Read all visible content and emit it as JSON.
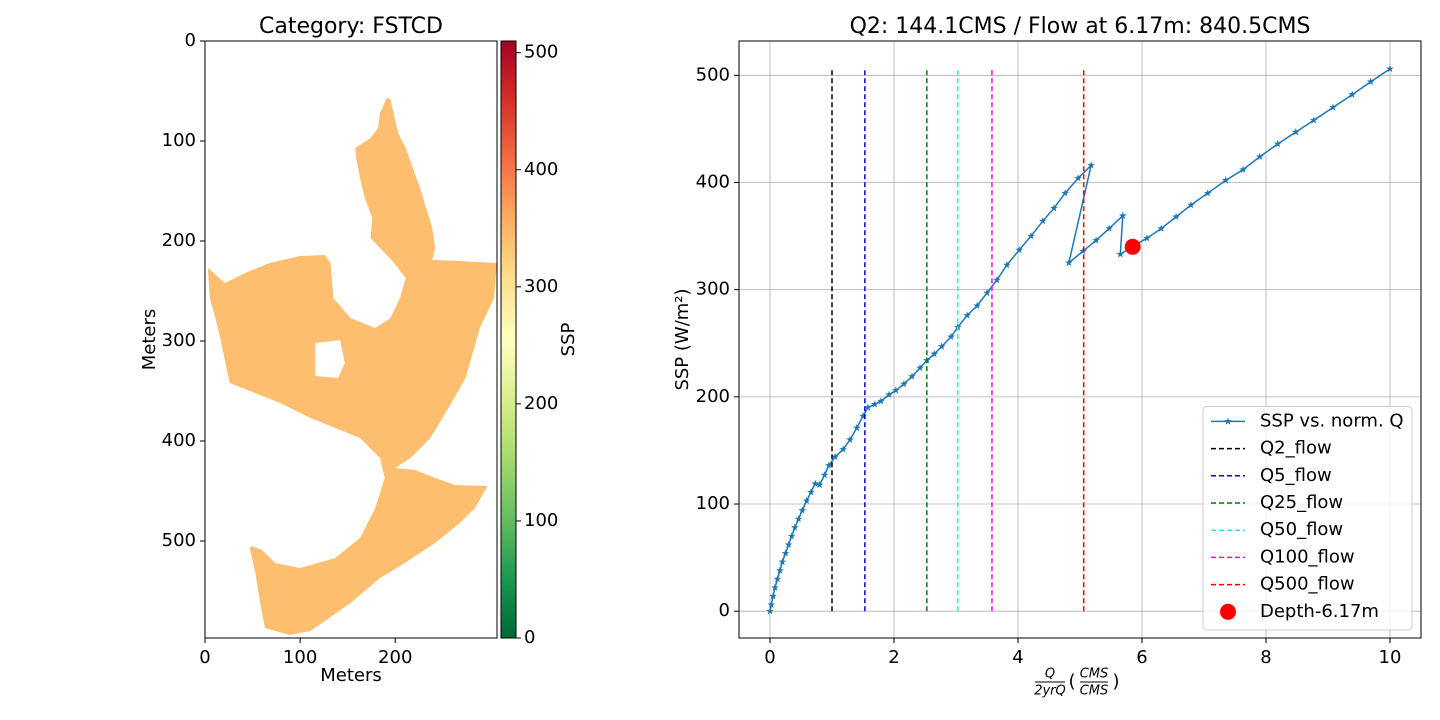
{
  "chart_data": [
    {
      "type": "image",
      "title": "Category: FSTCD",
      "xlabel": "Meters",
      "ylabel": "Meters",
      "xlim": [
        0,
        307
      ],
      "ylim": [
        597,
        0
      ],
      "xticks": [
        0,
        100,
        200
      ],
      "yticks": [
        0,
        100,
        200,
        300,
        400,
        500
      ],
      "region": {
        "value": 340,
        "x": [
          191,
          195,
          203,
          211,
          226,
          239,
          242,
          239,
          268,
          287,
          307,
          304,
          289,
          274,
          256,
          237,
          216,
          200,
          221,
          242,
          263,
          297,
          284,
          268,
          242,
          205,
          184,
          153,
          111,
          89,
          63,
          58,
          53,
          47,
          49,
          60,
          74,
          100,
          137,
          163,
          179,
          189,
          184,
          163,
          111,
          79,
          26,
          16,
          11,
          5,
          3,
          21,
          42,
          68,
          100,
          126,
          132,
          135,
          153,
          179,
          195,
          205,
          211,
          197,
          184,
          174,
          176,
          168,
          163,
          159,
          158,
          174,
          182,
          184
        ],
        "y": [
          57,
          58,
          92,
          107,
          147,
          187,
          207,
          219,
          220,
          221,
          222,
          257,
          287,
          337,
          367,
          397,
          417,
          427,
          429,
          437,
          444,
          445,
          467,
          482,
          502,
          525,
          537,
          562,
          590,
          594,
          587,
          562,
          532,
          507,
          505,
          509,
          522,
          527,
          517,
          497,
          467,
          437,
          417,
          397,
          377,
          362,
          342,
          297,
          277,
          257,
          227,
          242,
          232,
          222,
          215,
          214,
          222,
          257,
          277,
          287,
          277,
          257,
          237,
          220,
          207,
          197,
          177,
          157,
          137,
          117,
          107,
          97,
          87,
          72
        ],
        "hole_x": [
          116,
          142,
          147,
          140,
          116
        ],
        "hole_y": [
          302,
          299,
          322,
          337,
          335
        ]
      },
      "colorbar": {
        "label": "SSP",
        "colormap": "RdYlGn_r",
        "lim": [
          0,
          510
        ],
        "ticks": [
          0,
          100,
          200,
          300,
          400,
          500
        ]
      }
    },
    {
      "type": "line",
      "title": "Q2: 144.1CMS / Flow at 6.17m: 840.5CMS",
      "xlabel": {
        "numerator": "Q",
        "denominator": "2yrQ",
        "unit_numerator": "CMS",
        "unit_denominator": "CMS",
        "brackets": [
          "(",
          ")"
        ]
      },
      "ylabel": "SSP (W/m²)",
      "xlim": [
        -0.5,
        10.5
      ],
      "ylim": [
        -25,
        532
      ],
      "xticks": [
        0,
        2,
        4,
        6,
        8,
        10
      ],
      "yticks": [
        0,
        100,
        200,
        300,
        400,
        500
      ],
      "grid": true,
      "legend": "lower right",
      "series": [
        {
          "name": "SSP vs. norm. Q",
          "color": "#1f77b4",
          "marker": "star",
          "x": [
            0,
            0.02,
            0.05,
            0.08,
            0.12,
            0.16,
            0.2,
            0.25,
            0.3,
            0.35,
            0.4,
            0.46,
            0.52,
            0.59,
            0.66,
            0.73,
            0.8,
            0.88,
            0.95,
            1.05,
            1.18,
            1.29,
            1.4,
            1.5,
            1.58,
            1.69,
            1.79,
            1.92,
            2.03,
            2.16,
            2.29,
            2.42,
            2.53,
            2.65,
            2.77,
            2.92,
            3.03,
            3.18,
            3.34,
            3.5,
            3.66,
            3.82,
            4.02,
            4.21,
            4.4,
            4.58,
            4.76,
            4.97,
            5.18,
            4.82,
            5.05,
            5.26,
            5.47,
            5.69,
            5.65,
            5.84,
            6.08,
            6.31,
            6.55,
            6.79,
            7.06,
            7.35,
            7.63,
            7.9,
            8.19,
            8.48,
            8.77,
            9.08,
            9.39,
            9.69,
            10
          ],
          "values": [
            0,
            6,
            14,
            22,
            30,
            38,
            46,
            54,
            62,
            70,
            78,
            86,
            94,
            103,
            111,
            119,
            118,
            127,
            136,
            144,
            151,
            160,
            171,
            182,
            190,
            193,
            196,
            202,
            206,
            212,
            219,
            227,
            234,
            240,
            247,
            256,
            265,
            276,
            285,
            297,
            309,
            323,
            337,
            350,
            364,
            376,
            390,
            404,
            416,
            325,
            336,
            346,
            357,
            369,
            333,
            340,
            348,
            357,
            368,
            379,
            390,
            402,
            412,
            424,
            436,
            447,
            458,
            470,
            482,
            494,
            506
          ]
        },
        {
          "name": "Q2_flow",
          "color": "#000000",
          "linestyle": "dashed",
          "x": [
            1.0,
            1.0
          ],
          "values": [
            0,
            506
          ]
        },
        {
          "name": "Q5_flow",
          "color": "#0000ff",
          "linestyle": "dashed",
          "x": [
            1.53,
            1.53
          ],
          "values": [
            0,
            506
          ]
        },
        {
          "name": "Q25_flow",
          "color": "#008000",
          "linestyle": "dashed",
          "x": [
            2.53,
            2.53
          ],
          "values": [
            0,
            506
          ]
        },
        {
          "name": "Q50_flow",
          "color": "#40e0d0",
          "linestyle": "dashed",
          "x": [
            3.03,
            3.03
          ],
          "values": [
            0,
            506
          ]
        },
        {
          "name": "Q100_flow",
          "color": "#ff00ff",
          "linestyle": "dashed",
          "x": [
            3.58,
            3.58
          ],
          "values": [
            0,
            506
          ]
        },
        {
          "name": "Q500_flow",
          "color": "#ff0000",
          "linestyle": "dashed",
          "x": [
            5.06,
            5.06
          ],
          "values": [
            0,
            506
          ]
        },
        {
          "name": "Depth-6.17m",
          "color": "#ff0000",
          "marker": "circle",
          "x": [
            5.85
          ],
          "values": [
            340
          ]
        }
      ]
    }
  ]
}
